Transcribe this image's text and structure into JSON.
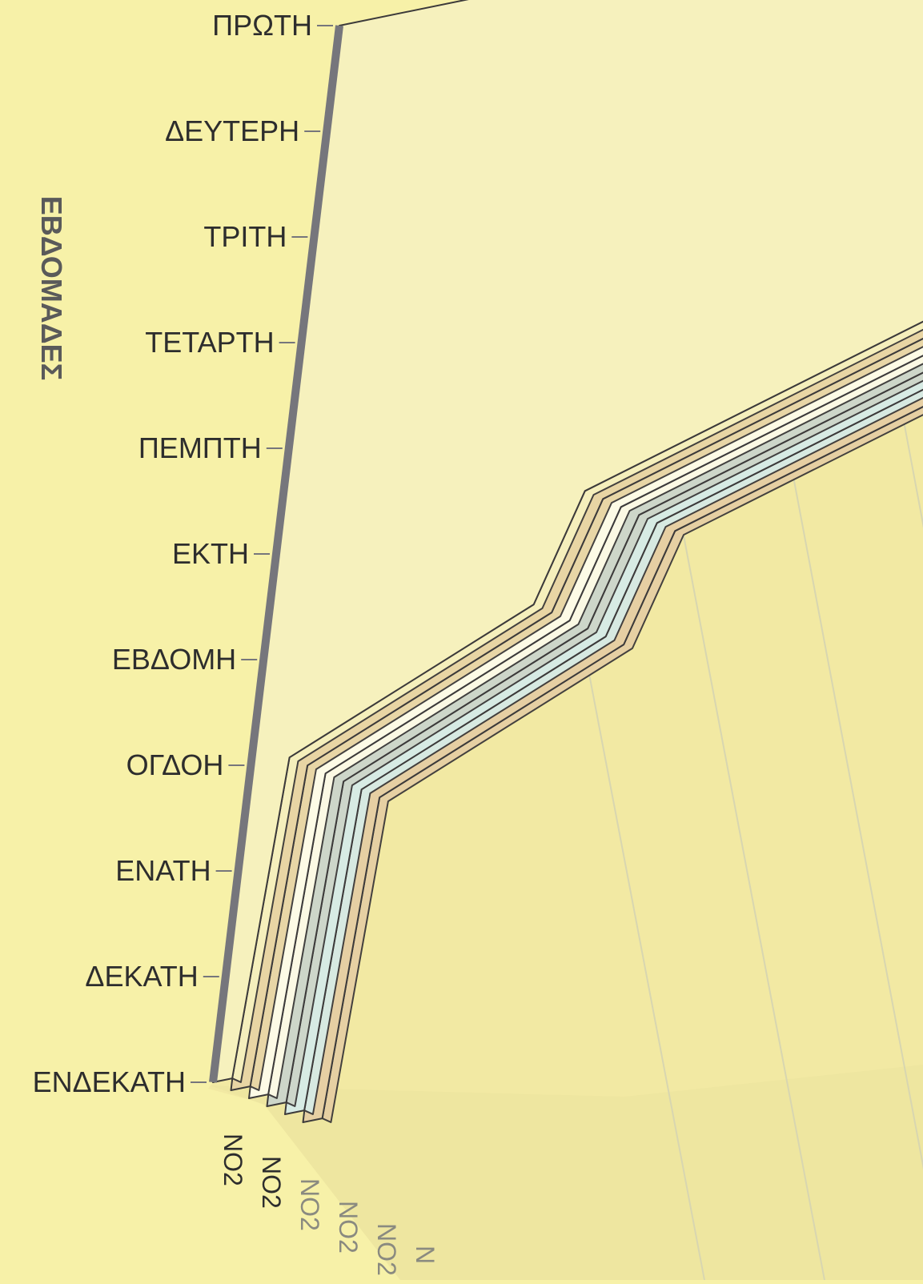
{
  "chart_data": {
    "type": "area",
    "variant": "3d-stacked-area",
    "ylabel": "ΕΒΔΟΜΑΔΕΣ",
    "categories": [
      "ΠΡΩΤΗ",
      "ΔΕΥΤΕΡΗ",
      "ΤΡΙΤΗ",
      "ΤΕΤΑΡΤΗ",
      "ΠΕΜΠΤΗ",
      "ΕΚΤΗ",
      "ΕΒΔΟΜΗ",
      "ΟΓΔΟΗ",
      "ΕΝΑΤΗ",
      "ΔΕΚΑΤΗ",
      "ΕΝΔΕΚΑΤΗ"
    ],
    "depth_labels": [
      "NO2",
      "NO2",
      "NO2",
      "NO2",
      "NO2",
      "N"
    ],
    "grid": true,
    "series": [
      {
        "color": "#f6f1bd",
        "values": [
          1.0,
          1.0,
          1.0,
          1.0,
          1.0,
          0.48,
          0.42,
          0.06,
          0.05,
          0.04,
          0.03
        ]
      },
      {
        "color": "#e8d5a4",
        "values": [
          1.0,
          1.0,
          1.0,
          1.0,
          1.0,
          0.48,
          0.42,
          0.06,
          0.05,
          0.04,
          0.03
        ]
      },
      {
        "color": "#fdfbe6",
        "values": [
          1.0,
          1.0,
          1.0,
          1.0,
          1.0,
          0.48,
          0.42,
          0.06,
          0.05,
          0.04,
          0.03
        ]
      },
      {
        "color": "#cdd6c9",
        "values": [
          1.0,
          1.0,
          1.0,
          1.0,
          1.0,
          0.48,
          0.42,
          0.06,
          0.05,
          0.04,
          0.03
        ]
      },
      {
        "color": "#d7ebe4",
        "values": [
          1.0,
          1.0,
          1.0,
          1.0,
          1.0,
          0.48,
          0.42,
          0.06,
          0.05,
          0.04,
          0.03
        ]
      },
      {
        "color": "#e6cfa3",
        "values": [
          1.0,
          1.0,
          1.0,
          1.0,
          1.0,
          0.48,
          0.42,
          0.06,
          0.05,
          0.04,
          0.03
        ]
      }
    ]
  },
  "colors": {
    "background": "#f7f1a8",
    "wall": "#f2e9a3",
    "floor": "#eee6a0",
    "axis": "#76767c",
    "grid": "#d8d6b0",
    "outline": "#3c3a3a"
  }
}
